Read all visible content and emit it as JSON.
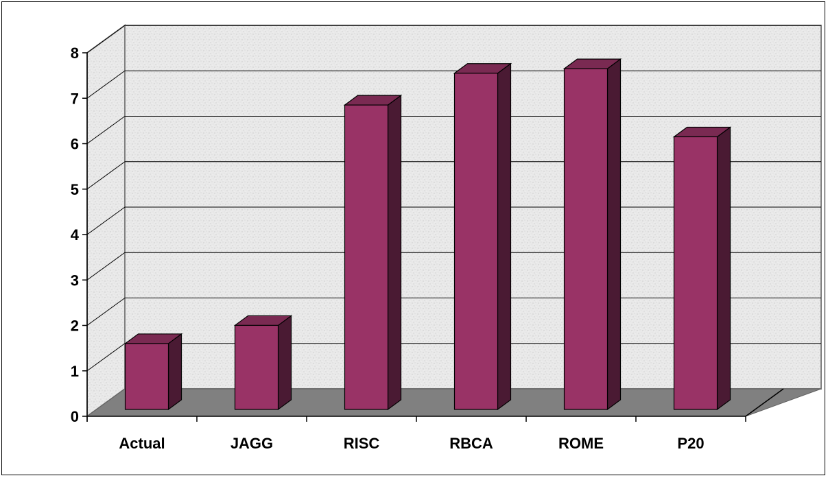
{
  "chart_data": {
    "type": "bar",
    "style": "3d-column",
    "categories": [
      "Actual",
      "JAGG",
      "RISC",
      "RBCA",
      "ROME",
      "P20"
    ],
    "values": [
      1.45,
      1.85,
      6.7,
      7.4,
      7.5,
      6.0
    ],
    "ylim": [
      0,
      8
    ],
    "yticks": [
      "0",
      "1",
      "2",
      "3",
      "4",
      "5",
      "6",
      "7",
      "8"
    ],
    "title": "",
    "xlabel": "",
    "ylabel": "",
    "grid": true,
    "legend": "none"
  },
  "colors": {
    "bar_front": "#993366",
    "bar_top": "#7a2a52",
    "bar_side": "#4a1a33",
    "wall": "#e8e8e8",
    "floor": "#808080",
    "grid": "#000000"
  }
}
